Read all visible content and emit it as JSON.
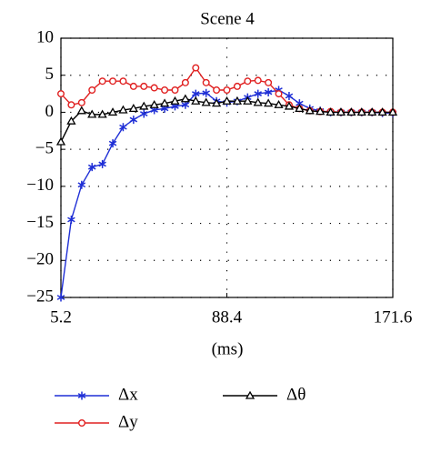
{
  "chart_data": {
    "type": "line",
    "title": "Scene 4",
    "x_label": "(ms)",
    "x": [
      5.2,
      10.4,
      15.6,
      20.8,
      26,
      31.2,
      36.4,
      41.6,
      46.8,
      52,
      57.2,
      62.4,
      67.6,
      72.8,
      78,
      83.2,
      88.4,
      93.6,
      98.8,
      104,
      109.2,
      114.4,
      119.6,
      124.8,
      130,
      135.2,
      140.4,
      145.6,
      150.8,
      156,
      161.2,
      166.4,
      171.6
    ],
    "xlim": [
      5.2,
      171.6
    ],
    "xticks": [
      5.2,
      88.4,
      171.6
    ],
    "ylim": [
      -25,
      10
    ],
    "yticks": [
      10,
      5,
      0,
      {
        "value": -5,
        "label": "−5"
      },
      {
        "value": -10,
        "label": "−10"
      },
      {
        "value": -15,
        "label": "−15"
      },
      {
        "value": -20,
        "label": "−20"
      },
      {
        "value": -25,
        "label": "−25"
      }
    ],
    "grid": true,
    "series": [
      {
        "name": "Δx",
        "color": "#1f2fd6",
        "marker": "star",
        "values": [
          -25,
          -14.5,
          -9.8,
          -7.4,
          -7.0,
          -4.2,
          -2.0,
          -1.0,
          -0.2,
          0.3,
          0.5,
          0.8,
          1.0,
          2.5,
          2.6,
          1.5,
          1.3,
          1.5,
          2.0,
          2.5,
          2.7,
          3.0,
          2.2,
          1.2,
          0.5,
          0.2,
          0,
          0,
          0,
          0,
          0,
          -0.1,
          -0.1
        ]
      },
      {
        "name": "Δy",
        "color": "#e02020",
        "marker": "circle",
        "values": [
          2.5,
          1.0,
          1.3,
          3.0,
          4.2,
          4.2,
          4.2,
          3.5,
          3.5,
          3.3,
          3.0,
          3.0,
          4.0,
          6.0,
          4.0,
          3.0,
          3.0,
          3.5,
          4.2,
          4.3,
          4.0,
          2.5,
          1.0,
          0.5,
          0.2,
          0.1,
          0.1,
          0,
          0,
          0,
          0,
          0,
          0
        ]
      },
      {
        "name": "Δθ",
        "color": "#000000",
        "marker": "triangle",
        "values": [
          -4,
          -1.2,
          0.2,
          -0.3,
          -0.3,
          0,
          0.3,
          0.5,
          0.8,
          1.0,
          1.2,
          1.5,
          1.8,
          1.5,
          1.3,
          1.2,
          1.5,
          1.5,
          1.5,
          1.3,
          1.2,
          1.0,
          0.8,
          0.5,
          0.2,
          0.1,
          0,
          0,
          0,
          0,
          0,
          0,
          0
        ]
      }
    ]
  }
}
